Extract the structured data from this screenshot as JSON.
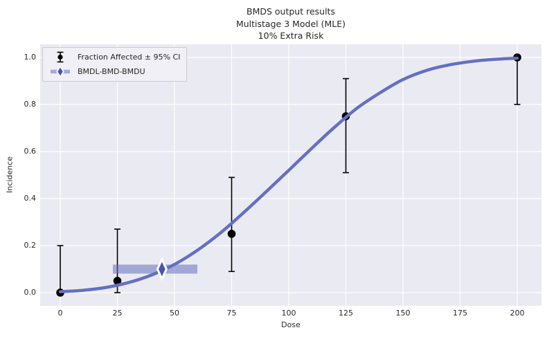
{
  "title": {
    "line1": "BMDS output results",
    "line2": "Multistage 3 Model (MLE)",
    "line3": "10% Extra Risk"
  },
  "axes": {
    "xlabel": "Dose",
    "ylabel": "Incidence"
  },
  "legend": {
    "entries": [
      {
        "label": "Fraction Affected ± 95% CI",
        "icon": "errorbar-point-icon"
      },
      {
        "label": "BMDL-BMD-BMDU",
        "icon": "bmd-interval-icon"
      }
    ]
  },
  "colors": {
    "figure_bg": "#FFFFFF",
    "plot_bg": "#EAEAF2",
    "grid": "#FFFFFF",
    "curve": "#6470C0",
    "bmd_bar": "#6470C0",
    "bmd_diamond": "#4D55AB",
    "marker": "#000000",
    "text": "#262626",
    "legend_bg": "#F0F0F6",
    "legend_border": "#CCCCCC"
  },
  "chart_data": {
    "type": "line",
    "title": "BMDS output results — Multistage 3 Model (MLE) — 10% Extra Risk",
    "xlabel": "Dose",
    "ylabel": "Incidence",
    "xlim": [
      -8.8,
      210.6
    ],
    "ylim": [
      -0.056,
      1.056
    ],
    "x_ticks": [
      0,
      25,
      50,
      75,
      100,
      125,
      150,
      175,
      200
    ],
    "x_tick_labels": [
      "0",
      "25",
      "50",
      "75",
      "100",
      "125",
      "150",
      "175",
      "200"
    ],
    "y_ticks": [
      0.0,
      0.2,
      0.4,
      0.6,
      0.8,
      1.0
    ],
    "y_tick_labels": [
      "0.0",
      "0.2",
      "0.4",
      "0.6",
      "0.8",
      "1.0"
    ],
    "grid": true,
    "legend_position": "upper left",
    "series": [
      {
        "name": "Multistage 3 model fit (MLE)",
        "type": "line",
        "color": "#6470C0",
        "x": [
          0,
          10,
          20,
          30,
          40,
          50,
          60,
          70,
          80,
          90,
          100,
          110,
          120,
          130,
          140,
          150,
          160,
          170,
          180,
          190,
          200
        ],
        "y": [
          0.004,
          0.01,
          0.022,
          0.043,
          0.075,
          0.12,
          0.18,
          0.253,
          0.338,
          0.428,
          0.52,
          0.613,
          0.703,
          0.785,
          0.85,
          0.906,
          0.944,
          0.968,
          0.983,
          0.992,
          0.997
        ]
      },
      {
        "name": "Fraction Affected ± 95% CI",
        "type": "scatter_errorbar",
        "color": "#000000",
        "points": [
          {
            "dose": 0,
            "fraction_affected": 0.0,
            "ci_lower": 0.0,
            "ci_upper": 0.2
          },
          {
            "dose": 25,
            "fraction_affected": 0.05,
            "ci_lower": 0.0,
            "ci_upper": 0.27
          },
          {
            "dose": 75,
            "fraction_affected": 0.25,
            "ci_lower": 0.09,
            "ci_upper": 0.49
          },
          {
            "dose": 125,
            "fraction_affected": 0.75,
            "ci_lower": 0.51,
            "ci_upper": 0.91
          },
          {
            "dose": 200,
            "fraction_affected": 1.0,
            "ci_lower": 0.8,
            "ci_upper": 1.0
          }
        ]
      },
      {
        "name": "BMDL-BMD-BMDU",
        "type": "interval",
        "color": "#6470C0",
        "diamond_color": "#4D55AB",
        "bmdl": 23,
        "bmd": 44.5,
        "bmdu": 60,
        "y": 0.1
      }
    ]
  }
}
